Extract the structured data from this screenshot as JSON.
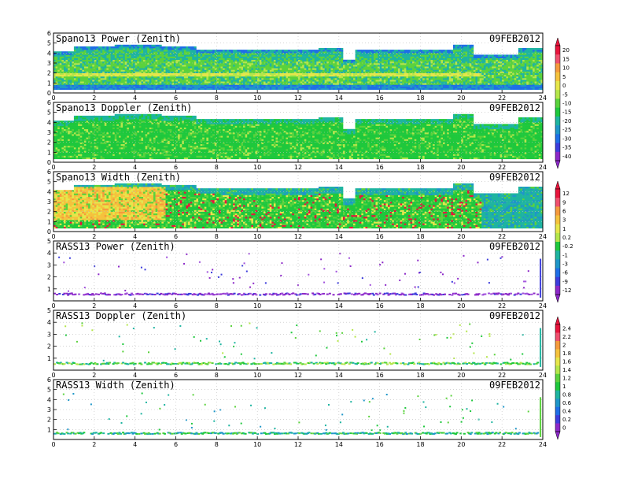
{
  "chart_data": [
    {
      "type": "heatmap",
      "title": "Spano13 Power (Zenith)",
      "date": "09FEB2012",
      "xlim": [
        0,
        24
      ],
      "ylim": [
        0,
        6
      ],
      "xticks": [
        "0",
        "2",
        "4",
        "6",
        "8",
        "10",
        "12",
        "14",
        "16",
        "18",
        "20",
        "22",
        "24"
      ],
      "yticks": [
        "0",
        "1",
        "2",
        "3",
        "4",
        "5",
        "6"
      ],
      "colorbar": [
        "20",
        "15",
        "10",
        "5",
        "0",
        "-5",
        "-10",
        "-15",
        "-20",
        "-25",
        "-30",
        "-35",
        "-40"
      ],
      "grid": true
    },
    {
      "type": "heatmap",
      "title": "Spano13 Doppler (Zenith)",
      "date": "09FEB2012",
      "xlim": [
        0,
        24
      ],
      "ylim": [
        0,
        6
      ],
      "xticks": [
        "0",
        "2",
        "4",
        "6",
        "8",
        "10",
        "12",
        "14",
        "16",
        "18",
        "20",
        "22",
        "24"
      ],
      "yticks": [
        "0",
        "1",
        "2",
        "3",
        "4",
        "5",
        "6"
      ],
      "grid": true
    },
    {
      "type": "heatmap",
      "title": "Spano13 Width (Zenith)",
      "date": "09FEB2012",
      "xlim": [
        0,
        24
      ],
      "ylim": [
        0,
        6
      ],
      "xticks": [
        "0",
        "2",
        "4",
        "6",
        "8",
        "10",
        "12",
        "14",
        "16",
        "18",
        "20",
        "22",
        "24"
      ],
      "yticks": [
        "0",
        "1",
        "2",
        "3",
        "4",
        "5",
        "6"
      ],
      "colorbar": [
        "12",
        "9",
        "6",
        "3",
        "1",
        "0.2",
        "-0.2",
        "-1",
        "-3",
        "-6",
        "-9",
        "-12"
      ],
      "grid": true
    },
    {
      "type": "scatter",
      "title": "RASS13 Power (Zenith)",
      "date": "09FEB2012",
      "xlim": [
        0,
        24
      ],
      "ylim": [
        0,
        5
      ],
      "xticks": [
        "0",
        "2",
        "4",
        "6",
        "8",
        "10",
        "12",
        "14",
        "16",
        "18",
        "20",
        "22",
        "24"
      ],
      "yticks": [
        "1",
        "2",
        "3",
        "4",
        "5"
      ],
      "grid": true
    },
    {
      "type": "scatter",
      "title": "RASS13 Doppler (Zenith)",
      "date": "09FEB2012",
      "xlim": [
        0,
        24
      ],
      "ylim": [
        0,
        5
      ],
      "xticks": [
        "0",
        "2",
        "4",
        "6",
        "8",
        "10",
        "12",
        "14",
        "16",
        "18",
        "20",
        "22",
        "24"
      ],
      "yticks": [
        "1",
        "2",
        "3",
        "4",
        "5"
      ],
      "colorbar": [
        "2.4",
        "2.2",
        "2",
        "1.8",
        "1.6",
        "1.4",
        "1.2",
        "1",
        "0.8",
        "0.6",
        "0.4",
        "0.2",
        "0"
      ],
      "grid": true
    },
    {
      "type": "scatter",
      "title": "RASS13 Width (Zenith)",
      "date": "09FEB2012",
      "xlim": [
        0,
        24
      ],
      "ylim": [
        0,
        6
      ],
      "xticks": [
        "0",
        "2",
        "4",
        "6",
        "8",
        "10",
        "12",
        "14",
        "16",
        "18",
        "20",
        "22",
        "24"
      ],
      "yticks": [
        "1",
        "2",
        "3",
        "4",
        "5",
        "6"
      ],
      "grid": true
    }
  ],
  "colors": {
    "colorbar": [
      "#e8143c",
      "#f0506e",
      "#f59a3c",
      "#f5c23c",
      "#e6e64a",
      "#b4e64a",
      "#5ad23c",
      "#1ec83c",
      "#1eb4a0",
      "#1e96c8",
      "#1e6ee6",
      "#3c3cdc",
      "#8c28c8"
    ]
  }
}
